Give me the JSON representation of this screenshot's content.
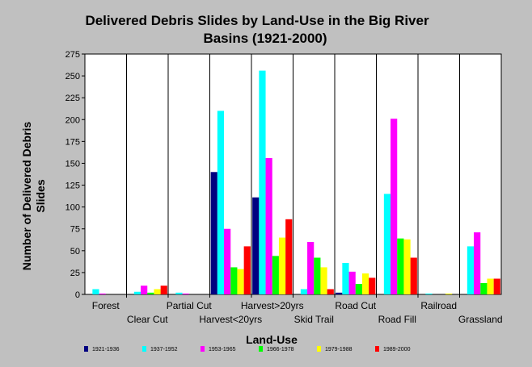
{
  "chart_data": {
    "type": "bar",
    "title_lines": [
      "Delivered Debris Slides by Land-Use in the Big River",
      "Basins (1921-2000)"
    ],
    "xlabel": "Land-Use",
    "ylabel_lines": [
      "Number of Delivered Debris",
      "Slides"
    ],
    "ylim": [
      0,
      275
    ],
    "yticks": [
      0,
      25,
      50,
      75,
      100,
      125,
      150,
      175,
      200,
      225,
      250,
      275
    ],
    "grid": false,
    "legend_position": "bottom",
    "categories": [
      "Forest",
      "Clear Cut",
      "Partial Cut",
      "Harvest<20yrs",
      "Harvest>20yrs",
      "Skid Trail",
      "Road Cut",
      "Road Fill",
      "Railroad",
      "Grassland"
    ],
    "series": [
      {
        "name": "1921-1936",
        "color": "#000080",
        "values": [
          0,
          0,
          0,
          140,
          111,
          0,
          2,
          0,
          0,
          0
        ]
      },
      {
        "name": "1937-1952",
        "color": "#00ffff",
        "values": [
          6,
          3,
          2,
          210,
          256,
          6,
          36,
          115,
          1,
          55
        ]
      },
      {
        "name": "1953-1965",
        "color": "#ff00ff",
        "values": [
          1,
          10,
          1,
          75,
          156,
          60,
          26,
          201,
          0,
          71
        ]
      },
      {
        "name": "1966-1978",
        "color": "#00ff00",
        "values": [
          0,
          2,
          0,
          31,
          44,
          42,
          12,
          64,
          0,
          13
        ]
      },
      {
        "name": "1979-1988",
        "color": "#ffff00",
        "values": [
          0,
          6,
          0,
          29,
          65,
          31,
          24,
          63,
          1,
          18
        ]
      },
      {
        "name": "1989-2000",
        "color": "#ff0000",
        "values": [
          0,
          10,
          0,
          55,
          86,
          6,
          19,
          42,
          0,
          18
        ]
      }
    ]
  }
}
